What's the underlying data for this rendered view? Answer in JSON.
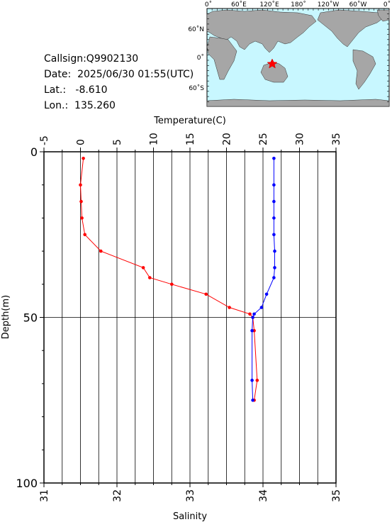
{
  "info": {
    "callsign": "Callsign:Q9902130",
    "date": "Date:  2025/06/30 01:55(UTC)",
    "lat": "Lat.:   -8.610",
    "lon": "Lon.:  135.260"
  },
  "map": {
    "top_labels": [
      "0˚",
      "60˚E",
      "120˚E",
      "180˚",
      "120˚W",
      "60˚W",
      "0˚"
    ],
    "lat_labels": [
      "60˚N",
      "0˚",
      "60˚S"
    ],
    "colors": {
      "ocean": "#c8f7ff",
      "land": "#a6a6a6",
      "marker": "#ff0000"
    }
  },
  "chart_data": {
    "type": "line",
    "temperature_axis": {
      "label": "Temperature(C)",
      "range": [
        -5,
        35
      ],
      "ticks": [
        -5,
        0,
        5,
        10,
        15,
        20,
        25,
        30,
        35
      ]
    },
    "salinity_axis": {
      "label": "Salinity",
      "range": [
        31,
        35
      ],
      "ticks": [
        31,
        32,
        33,
        34,
        35
      ]
    },
    "depth_axis": {
      "label": "Depth(m)",
      "range": [
        0,
        100
      ],
      "reversed": true,
      "ticks": [
        0,
        50,
        100
      ]
    },
    "series": [
      {
        "color": "#ff0000",
        "depth": [
          2,
          10,
          15,
          20,
          25,
          30,
          35,
          38,
          40,
          43,
          47,
          49,
          50,
          54,
          69,
          75
        ],
        "temperature": [
          0.4,
          0.0,
          0.1,
          0.2,
          0.6,
          2.8,
          8.6,
          9.5,
          12.5,
          17.2,
          20.4,
          23.2,
          23.6,
          23.8,
          24.2,
          23.8
        ]
      },
      {
        "color": "#0000ff",
        "depth": [
          2,
          10,
          15,
          20,
          25,
          30,
          35,
          38,
          43,
          47,
          49,
          50,
          54,
          69,
          75
        ],
        "salinity": [
          34.15,
          34.15,
          34.15,
          34.15,
          34.15,
          34.16,
          34.16,
          34.15,
          34.05,
          33.98,
          33.88,
          33.86,
          33.85,
          33.85,
          33.86
        ]
      }
    ],
    "grid": true
  }
}
